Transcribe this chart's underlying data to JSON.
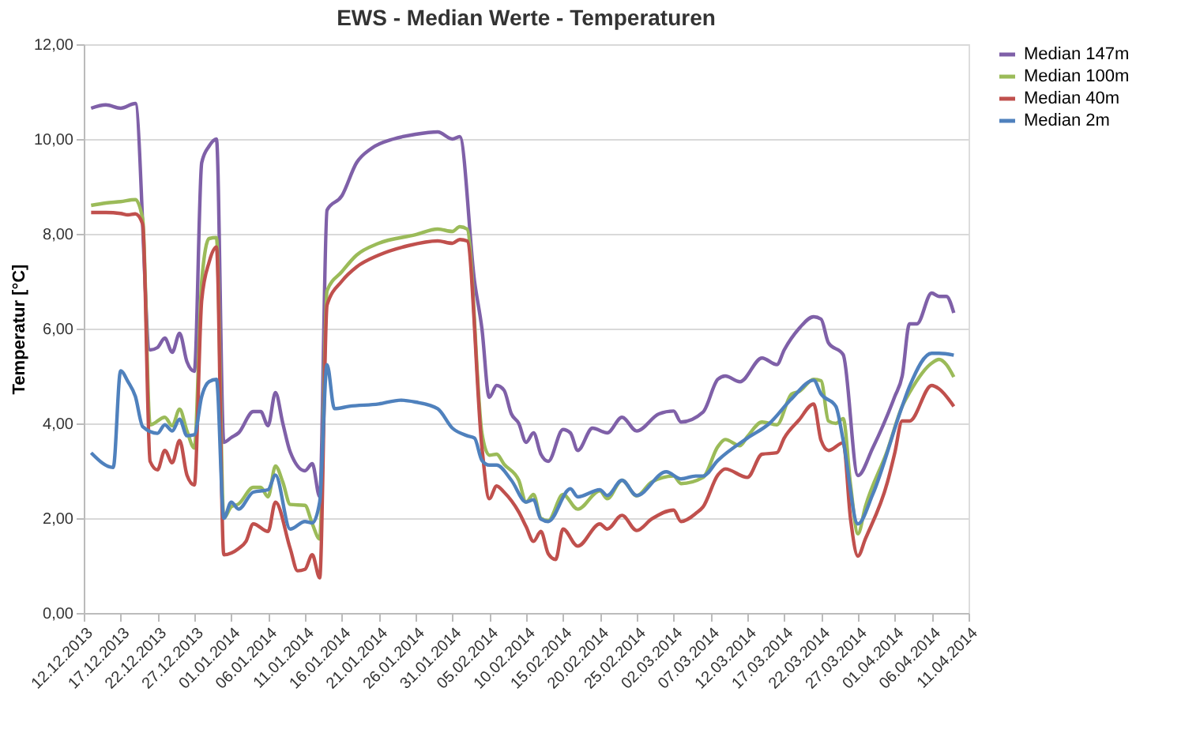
{
  "chart_data": {
    "type": "line",
    "title": "EWS  - Median Werte - Temperaturen",
    "ylabel": "Temperatur [°C]",
    "xlim": [
      "2013-12-12",
      "2014-04-11"
    ],
    "xticks": [
      {
        "value": "2013-12-12",
        "label": "12.12.2013"
      },
      {
        "value": "2013-12-17",
        "label": "17.12.2013"
      },
      {
        "value": "2013-12-22",
        "label": "22.12.2013"
      },
      {
        "value": "2013-12-27",
        "label": "27.12.2013"
      },
      {
        "value": "2014-01-01",
        "label": "01.01.2014"
      },
      {
        "value": "2014-01-06",
        "label": "06.01.2014"
      },
      {
        "value": "2014-01-11",
        "label": "11.01.2014"
      },
      {
        "value": "2014-01-16",
        "label": "16.01.2014"
      },
      {
        "value": "2014-01-21",
        "label": "21.01.2014"
      },
      {
        "value": "2014-01-26",
        "label": "26.01.2014"
      },
      {
        "value": "2014-01-31",
        "label": "31.01.2014"
      },
      {
        "value": "2014-02-05",
        "label": "05.02.2014"
      },
      {
        "value": "2014-02-10",
        "label": "10.02.2014"
      },
      {
        "value": "2014-02-15",
        "label": "15.02.2014"
      },
      {
        "value": "2014-02-20",
        "label": "20.02.2014"
      },
      {
        "value": "2014-02-25",
        "label": "25.02.2014"
      },
      {
        "value": "2014-03-02",
        "label": "02.03.2014"
      },
      {
        "value": "2014-03-07",
        "label": "07.03.2014"
      },
      {
        "value": "2014-03-12",
        "label": "12.03.2014"
      },
      {
        "value": "2014-03-17",
        "label": "17.03.2014"
      },
      {
        "value": "2014-03-22",
        "label": "22.03.2014"
      },
      {
        "value": "2014-03-27",
        "label": "27.03.2014"
      },
      {
        "value": "2014-04-01",
        "label": "01.04.2014"
      },
      {
        "value": "2014-04-06",
        "label": "06.04.2014"
      },
      {
        "value": "2014-04-11",
        "label": "11.04.2014"
      }
    ],
    "ylim": [
      0,
      12
    ],
    "yticks": [
      {
        "value": 0,
        "label": "0,00"
      },
      {
        "value": 2,
        "label": "2,00"
      },
      {
        "value": 4,
        "label": "4,00"
      },
      {
        "value": 6,
        "label": "6,00"
      },
      {
        "value": 8,
        "label": "8,00"
      },
      {
        "value": 10,
        "label": "10,00"
      },
      {
        "value": 12,
        "label": "12,00"
      }
    ],
    "grid": "y",
    "legend": "right",
    "marker": "none",
    "line_style": "solid",
    "series": [
      {
        "name": "Median 147m",
        "color": "#7f60a8",
        "x": [
          "2013-12-13",
          "2013-12-15",
          "2013-12-17",
          "2013-12-19",
          "2013-12-21",
          "2013-12-22",
          "2013-12-23",
          "2013-12-24",
          "2013-12-25",
          "2013-12-26",
          "2013-12-27",
          "2013-12-28",
          "2013-12-29",
          "2013-12-30",
          "2013-12-31",
          "2014-01-01",
          "2014-01-02",
          "2014-01-04",
          "2014-01-05",
          "2014-01-06",
          "2014-01-07",
          "2014-01-08",
          "2014-01-09",
          "2014-01-11",
          "2014-01-12",
          "2014-01-13",
          "2014-01-14",
          "2014-01-16",
          "2014-01-18",
          "2014-01-20",
          "2014-01-23",
          "2014-01-26",
          "2014-01-29",
          "2014-01-31",
          "2014-02-01",
          "2014-02-03",
          "2014-02-04",
          "2014-02-05",
          "2014-02-06",
          "2014-02-07",
          "2014-02-08",
          "2014-02-09",
          "2014-02-10",
          "2014-02-11",
          "2014-02-12",
          "2014-02-13",
          "2014-02-15",
          "2014-02-16",
          "2014-02-17",
          "2014-02-19",
          "2014-02-21",
          "2014-02-23",
          "2014-02-25",
          "2014-02-28",
          "2014-03-02",
          "2014-03-03",
          "2014-03-06",
          "2014-03-08",
          "2014-03-09",
          "2014-03-11",
          "2014-03-14",
          "2014-03-16",
          "2014-03-17",
          "2014-03-19",
          "2014-03-21",
          "2014-03-22",
          "2014-03-23",
          "2014-03-25",
          "2014-03-27",
          "2014-03-29",
          "2014-04-01",
          "2014-04-02",
          "2014-04-03",
          "2014-04-04",
          "2014-04-06",
          "2014-04-07",
          "2014-04-08",
          "2014-04-09"
        ],
        "values": [
          10.65,
          10.72,
          10.65,
          10.75,
          5.55,
          5.6,
          5.8,
          5.5,
          5.9,
          5.3,
          5.1,
          9.5,
          9.85,
          10.0,
          3.6,
          3.7,
          3.8,
          4.25,
          4.25,
          3.95,
          4.65,
          4.0,
          3.4,
          3.0,
          3.15,
          2.45,
          8.5,
          8.8,
          9.5,
          9.8,
          10.0,
          10.1,
          10.15,
          10.0,
          10.05,
          7.0,
          6.0,
          4.55,
          4.8,
          4.7,
          4.2,
          4.0,
          3.6,
          3.8,
          3.35,
          3.2,
          3.87,
          3.8,
          3.43,
          3.9,
          3.8,
          4.13,
          3.84,
          4.2,
          4.26,
          4.03,
          4.24,
          4.93,
          5.0,
          4.88,
          5.38,
          5.24,
          5.55,
          6.0,
          6.25,
          6.2,
          5.7,
          5.45,
          2.9,
          3.48,
          4.57,
          5.0,
          6.1,
          6.1,
          6.75,
          6.68,
          6.68,
          6.33
        ]
      },
      {
        "name": "Median 100m",
        "color": "#9bbb59",
        "x": [
          "2013-12-13",
          "2013-12-15",
          "2013-12-17",
          "2013-12-19",
          "2013-12-20",
          "2013-12-21",
          "2013-12-23",
          "2013-12-24",
          "2013-12-25",
          "2013-12-26",
          "2013-12-27",
          "2013-12-28",
          "2013-12-29",
          "2013-12-30",
          "2013-12-31",
          "2014-01-01",
          "2014-01-02",
          "2014-01-04",
          "2014-01-05",
          "2014-01-06",
          "2014-01-07",
          "2014-01-08",
          "2014-01-09",
          "2014-01-11",
          "2014-01-12",
          "2014-01-13",
          "2014-01-14",
          "2014-01-16",
          "2014-01-18",
          "2014-01-21",
          "2014-01-26",
          "2014-01-29",
          "2014-01-31",
          "2014-02-01",
          "2014-02-02",
          "2014-02-04",
          "2014-02-05",
          "2014-02-06",
          "2014-02-07",
          "2014-02-09",
          "2014-02-10",
          "2014-02-11",
          "2014-02-12",
          "2014-02-13",
          "2014-02-15",
          "2014-02-17",
          "2014-02-20",
          "2014-02-21",
          "2014-02-23",
          "2014-02-25",
          "2014-02-27",
          "2014-03-02",
          "2014-03-03",
          "2014-03-06",
          "2014-03-08",
          "2014-03-09",
          "2014-03-11",
          "2014-03-12",
          "2014-03-14",
          "2014-03-16",
          "2014-03-18",
          "2014-03-19",
          "2014-03-21",
          "2014-03-22",
          "2014-03-23",
          "2014-03-24",
          "2014-03-25",
          "2014-03-26",
          "2014-03-27",
          "2014-03-28",
          "2014-03-31",
          "2014-04-02",
          "2014-04-03",
          "2014-04-06",
          "2014-04-07",
          "2014-04-08",
          "2014-04-09"
        ],
        "values": [
          8.6,
          8.65,
          8.68,
          8.72,
          8.3,
          3.97,
          4.13,
          3.95,
          4.3,
          3.84,
          3.48,
          7.0,
          7.9,
          7.92,
          2.0,
          2.24,
          2.3,
          2.65,
          2.65,
          2.45,
          3.1,
          2.76,
          2.29,
          2.27,
          1.88,
          1.56,
          6.8,
          7.2,
          7.55,
          7.8,
          7.98,
          8.1,
          8.05,
          8.15,
          8.1,
          3.8,
          3.33,
          3.35,
          3.14,
          2.8,
          2.34,
          2.5,
          2.0,
          1.95,
          2.5,
          2.19,
          2.58,
          2.41,
          2.8,
          2.47,
          2.76,
          2.89,
          2.73,
          2.86,
          3.51,
          3.66,
          3.53,
          3.72,
          4.03,
          3.97,
          4.62,
          4.67,
          4.93,
          4.9,
          4.05,
          4.0,
          4.1,
          2.7,
          1.67,
          2.24,
          3.43,
          4.36,
          4.65,
          5.27,
          5.35,
          5.24,
          4.98
        ]
      },
      {
        "name": "Median 40m",
        "color": "#c0504d",
        "x": [
          "2013-12-13",
          "2013-12-15",
          "2013-12-17",
          "2013-12-18",
          "2013-12-19",
          "2013-12-20",
          "2013-12-21",
          "2013-12-22",
          "2013-12-23",
          "2013-12-24",
          "2013-12-25",
          "2013-12-26",
          "2013-12-27",
          "2013-12-28",
          "2013-12-29",
          "2013-12-30",
          "2013-12-31",
          "2014-01-02",
          "2014-01-03",
          "2014-01-04",
          "2014-01-06",
          "2014-01-07",
          "2014-01-09",
          "2014-01-10",
          "2014-01-11",
          "2014-01-12",
          "2014-01-13",
          "2014-01-14",
          "2014-01-16",
          "2014-01-18",
          "2014-01-21",
          "2014-01-25",
          "2014-01-29",
          "2014-01-31",
          "2014-02-01",
          "2014-02-02",
          "2014-02-04",
          "2014-02-05",
          "2014-02-06",
          "2014-02-07",
          "2014-02-09",
          "2014-02-10",
          "2014-02-11",
          "2014-02-12",
          "2014-02-13",
          "2014-02-14",
          "2014-02-15",
          "2014-02-17",
          "2014-02-20",
          "2014-02-21",
          "2014-02-23",
          "2014-02-25",
          "2014-02-27",
          "2014-03-02",
          "2014-03-03",
          "2014-03-05",
          "2014-03-06",
          "2014-03-08",
          "2014-03-09",
          "2014-03-12",
          "2014-03-14",
          "2014-03-16",
          "2014-03-17",
          "2014-03-19",
          "2014-03-21",
          "2014-03-22",
          "2014-03-23",
          "2014-03-25",
          "2014-03-26",
          "2014-03-27",
          "2014-03-28",
          "2014-03-31",
          "2014-04-01",
          "2014-04-02",
          "2014-04-03",
          "2014-04-06",
          "2014-04-07",
          "2014-04-09"
        ],
        "values": [
          8.45,
          8.45,
          8.43,
          8.4,
          8.42,
          8.2,
          3.2,
          3.02,
          3.43,
          3.17,
          3.64,
          2.91,
          2.7,
          6.6,
          7.4,
          7.72,
          1.23,
          1.36,
          1.51,
          1.88,
          1.72,
          2.34,
          1.36,
          0.89,
          0.92,
          1.23,
          0.74,
          6.5,
          7.0,
          7.3,
          7.55,
          7.75,
          7.85,
          7.8,
          7.88,
          7.85,
          3.5,
          2.41,
          2.68,
          2.55,
          2.13,
          1.82,
          1.51,
          1.72,
          1.25,
          1.13,
          1.77,
          1.41,
          1.88,
          1.77,
          2.06,
          1.74,
          1.98,
          2.17,
          1.93,
          2.1,
          2.24,
          2.91,
          3.04,
          2.86,
          3.35,
          3.38,
          3.69,
          4.07,
          4.41,
          3.64,
          3.43,
          3.59,
          1.98,
          1.2,
          1.56,
          2.76,
          3.38,
          4.05,
          4.05,
          4.8,
          4.73,
          4.36
        ]
      },
      {
        "name": "Median 2m",
        "color": "#4f81bd",
        "x": [
          "2013-12-13",
          "2013-12-16",
          "2013-12-17",
          "2013-12-18",
          "2013-12-19",
          "2013-12-20",
          "2013-12-22",
          "2013-12-23",
          "2013-12-24",
          "2013-12-25",
          "2013-12-26",
          "2013-12-27",
          "2013-12-28",
          "2013-12-29",
          "2013-12-30",
          "2013-12-31",
          "2014-01-01",
          "2014-01-02",
          "2014-01-04",
          "2014-01-06",
          "2014-01-07",
          "2014-01-09",
          "2014-01-11",
          "2014-01-12",
          "2014-01-13",
          "2014-01-14",
          "2014-01-15",
          "2014-01-17",
          "2014-01-21",
          "2014-01-24",
          "2014-01-26",
          "2014-01-29",
          "2014-01-31",
          "2014-02-02",
          "2014-02-03",
          "2014-02-04",
          "2014-02-05",
          "2014-02-06",
          "2014-02-08",
          "2014-02-10",
          "2014-02-11",
          "2014-02-12",
          "2014-02-13",
          "2014-02-16",
          "2014-02-17",
          "2014-02-20",
          "2014-02-21",
          "2014-02-23",
          "2014-02-25",
          "2014-03-01",
          "2014-03-03",
          "2014-03-05",
          "2014-03-06",
          "2014-03-08",
          "2014-03-12",
          "2014-03-15",
          "2014-03-18",
          "2014-03-21",
          "2014-03-22",
          "2014-03-24",
          "2014-03-25",
          "2014-03-27",
          "2014-03-29",
          "2014-04-02",
          "2014-04-03",
          "2014-04-06",
          "2014-04-07",
          "2014-04-09"
        ],
        "values": [
          3.38,
          3.07,
          5.11,
          4.88,
          4.57,
          3.93,
          3.79,
          3.97,
          3.84,
          4.09,
          3.74,
          3.76,
          4.57,
          4.88,
          4.93,
          2.0,
          2.34,
          2.19,
          2.55,
          2.6,
          2.91,
          1.77,
          1.93,
          1.9,
          2.34,
          5.24,
          4.31,
          4.36,
          4.41,
          4.49,
          4.45,
          4.31,
          3.9,
          3.74,
          3.69,
          3.22,
          3.12,
          3.12,
          2.8,
          2.34,
          2.39,
          1.98,
          1.93,
          2.62,
          2.45,
          2.6,
          2.48,
          2.8,
          2.48,
          2.98,
          2.83,
          2.89,
          2.89,
          3.22,
          3.69,
          4.0,
          4.52,
          4.91,
          4.62,
          4.36,
          3.64,
          1.88,
          2.5,
          4.36,
          4.78,
          5.48,
          5.48,
          5.44
        ]
      }
    ]
  }
}
